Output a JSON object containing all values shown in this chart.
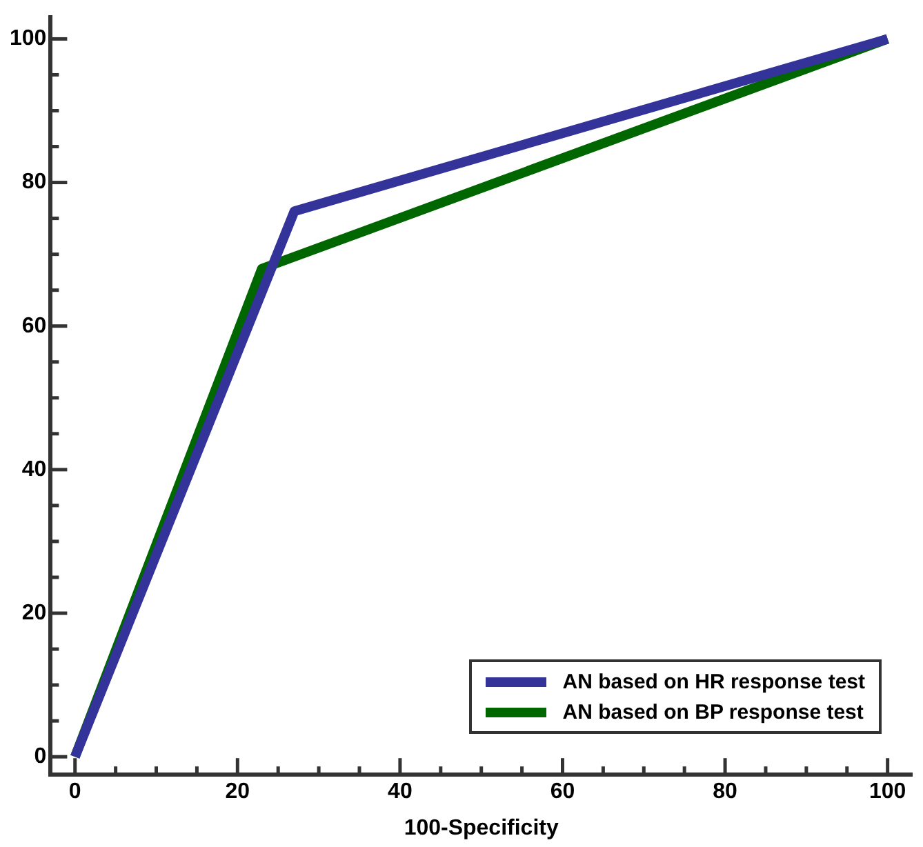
{
  "chart_data": {
    "type": "line",
    "xlabel": "100-Specificity",
    "xlim": [
      -3,
      103
    ],
    "ylim": [
      -2.5,
      103
    ],
    "xticks": [
      0,
      {
        "value": 5,
        "label": null
      },
      {
        "value": 10,
        "label": null
      },
      {
        "value": 15,
        "label": null
      },
      20,
      {
        "value": 25,
        "label": null
      },
      {
        "value": 30,
        "label": null
      },
      {
        "value": 35,
        "label": null
      },
      40,
      {
        "value": 45,
        "label": null
      },
      {
        "value": 50,
        "label": null
      },
      {
        "value": 55,
        "label": null
      },
      60,
      {
        "value": 65,
        "label": null
      },
      {
        "value": 70,
        "label": null
      },
      {
        "value": 75,
        "label": null
      },
      80,
      {
        "value": 85,
        "label": null
      },
      {
        "value": 90,
        "label": null
      },
      {
        "value": 95,
        "label": null
      },
      100
    ],
    "yticks": [
      0,
      {
        "value": 5,
        "label": null
      },
      {
        "value": 10,
        "label": null
      },
      {
        "value": 15,
        "label": null
      },
      20,
      {
        "value": 25,
        "label": null
      },
      {
        "value": 30,
        "label": null
      },
      {
        "value": 35,
        "label": null
      },
      40,
      {
        "value": 45,
        "label": null
      },
      {
        "value": 50,
        "label": null
      },
      {
        "value": 55,
        "label": null
      },
      60,
      {
        "value": 65,
        "label": null
      },
      {
        "value": 70,
        "label": null
      },
      {
        "value": 75,
        "label": null
      },
      80,
      {
        "value": 85,
        "label": null
      },
      {
        "value": 90,
        "label": null
      },
      {
        "value": 95,
        "label": null
      },
      100
    ],
    "grid": false,
    "legend": "bottom right",
    "marker": "none",
    "line_style": "solid",
    "series": [
      {
        "name": "AN based on HR response test",
        "color": "#333399",
        "x": [
          0,
          27,
          100
        ],
        "values": [
          0,
          76,
          100
        ]
      },
      {
        "name": "AN based on BP response test",
        "color": "#006600",
        "x": [
          0,
          23,
          100
        ],
        "values": [
          0,
          68,
          100
        ]
      }
    ]
  }
}
